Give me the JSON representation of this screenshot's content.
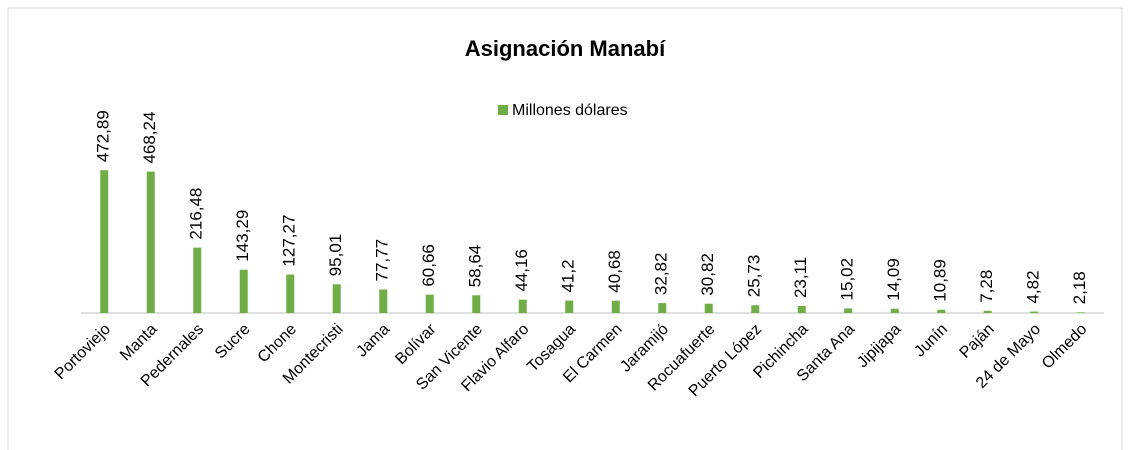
{
  "chart_data": {
    "type": "bar",
    "title": "Asignación Manabí",
    "categories": [
      "Portoviejo",
      "Manta",
      "Pedernales",
      "Sucre",
      "Chone",
      "Montecristi",
      "Jama",
      "Bolívar",
      "San Vicente",
      "Flavio Alfaro",
      "Tosagua",
      "El Carmen",
      "Jaramijó",
      "Rocuafuerte",
      "Puerto López",
      "Pichincha",
      "Santa Ana",
      "Jipijapa",
      "Junín",
      "Paján",
      "24 de Mayo",
      "Olmedo"
    ],
    "series": [
      {
        "name": "Millones dólares",
        "color": "#70ad47",
        "values": [
          472.89,
          468.24,
          216.48,
          143.29,
          127.27,
          95.01,
          77.77,
          60.66,
          58.64,
          44.16,
          41.2,
          40.68,
          32.82,
          30.82,
          25.73,
          23.11,
          15.02,
          14.09,
          10.89,
          7.28,
          4.82,
          2.18
        ],
        "value_labels": [
          "472,89",
          "468,24",
          "216,48",
          "143,29",
          "127,27",
          "95,01",
          "77,77",
          "60,66",
          "58,64",
          "44,16",
          "41,2",
          "40,68",
          "32,82",
          "30,82",
          "25,73",
          "23,11",
          "15,02",
          "14,09",
          "10,89",
          "7,28",
          "4,82",
          "2,18"
        ]
      }
    ],
    "ylim": [
      0,
      500
    ],
    "legend": "top"
  }
}
